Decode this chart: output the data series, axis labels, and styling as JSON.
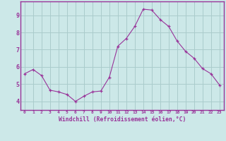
{
  "x": [
    0,
    1,
    2,
    3,
    4,
    5,
    6,
    7,
    8,
    9,
    10,
    11,
    12,
    13,
    14,
    15,
    16,
    17,
    18,
    19,
    20,
    21,
    22,
    23
  ],
  "y": [
    5.6,
    5.85,
    5.5,
    4.65,
    4.55,
    4.4,
    4.0,
    4.3,
    4.55,
    4.6,
    5.4,
    7.2,
    7.65,
    8.35,
    9.35,
    9.3,
    8.75,
    8.35,
    7.5,
    6.9,
    6.5,
    5.9,
    5.6,
    4.95
  ],
  "line_color": "#993399",
  "marker": "+",
  "marker_size": 3,
  "bg_color": "#cce8e8",
  "grid_color": "#aacccc",
  "xlabel": "Windchill (Refroidissement éolien,°C)",
  "xlabel_color": "#993399",
  "tick_color": "#993399",
  "spine_color": "#993399",
  "ylim": [
    3.5,
    9.8
  ],
  "xlim": [
    -0.5,
    23.5
  ],
  "yticks": [
    4,
    5,
    6,
    7,
    8,
    9
  ],
  "xticks": [
    0,
    1,
    2,
    3,
    4,
    5,
    6,
    7,
    8,
    9,
    10,
    11,
    12,
    13,
    14,
    15,
    16,
    17,
    18,
    19,
    20,
    21,
    22,
    23
  ]
}
